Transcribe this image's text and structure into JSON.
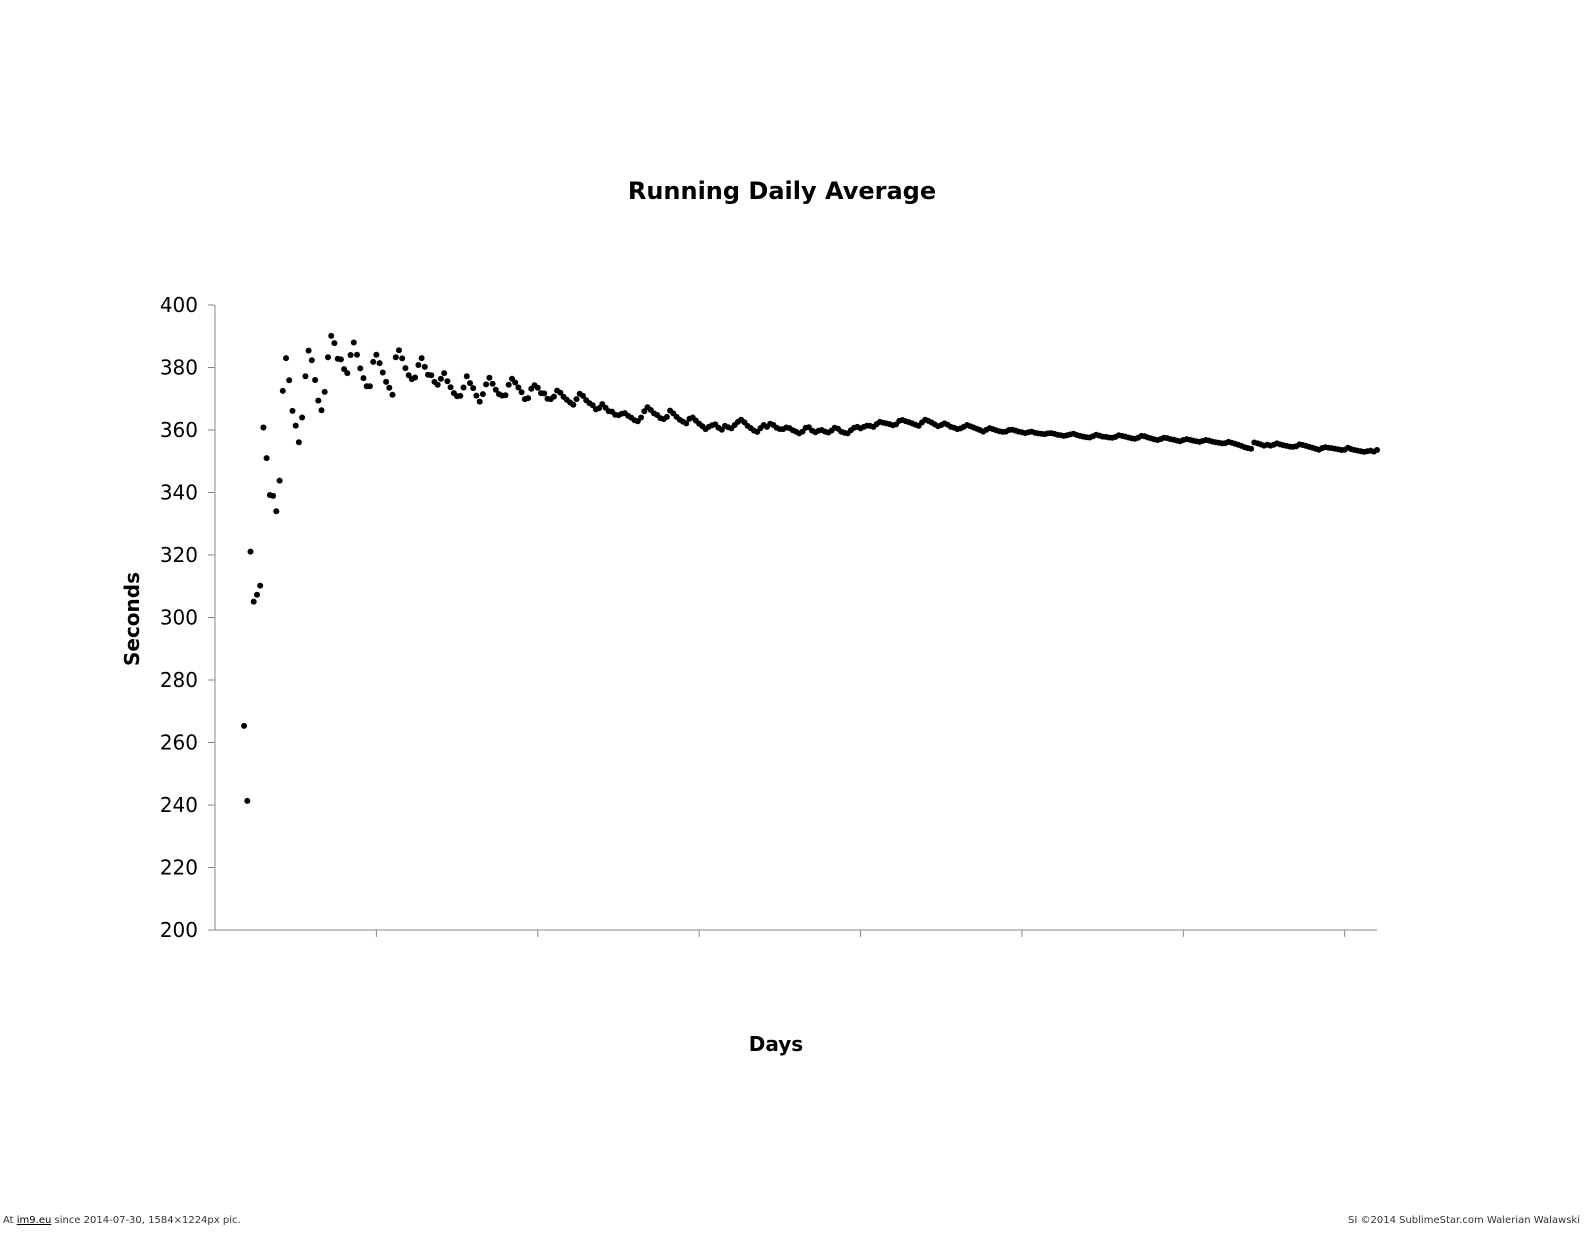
{
  "chart_data": {
    "type": "scatter",
    "title": "Running Daily Average",
    "xlabel": "Days",
    "ylabel": "Seconds",
    "ylim": [
      200,
      400
    ],
    "yticks": [
      200,
      220,
      240,
      260,
      280,
      300,
      320,
      340,
      360,
      380,
      400
    ],
    "xlim": [
      0,
      360
    ],
    "x_tick_labels": "none",
    "grid": false,
    "legend": "none",
    "marker_color": "#000000",
    "axis_color": "#888888",
    "series": [
      {
        "x": [
          9,
          10,
          11,
          12,
          13,
          14,
          15,
          16,
          17,
          18,
          19,
          20,
          21,
          22,
          23,
          24,
          25,
          26,
          27,
          28,
          29,
          30,
          31,
          32,
          33,
          34,
          35,
          36,
          37,
          38,
          39,
          40,
          41,
          42,
          43,
          44,
          45,
          46,
          47,
          48,
          49,
          50,
          51,
          52,
          53,
          54,
          55,
          56,
          57,
          58,
          59,
          60,
          61,
          62,
          63,
          64,
          65,
          66,
          67,
          68,
          69,
          70,
          71,
          72,
          73,
          74,
          75,
          76,
          77,
          78,
          79,
          80,
          81,
          82,
          83,
          84,
          85,
          86,
          87,
          88,
          89,
          90,
          91,
          92,
          93,
          94,
          95,
          96,
          97,
          98,
          99,
          100,
          101,
          102,
          103,
          104,
          105,
          106,
          107,
          108,
          109,
          110,
          111,
          112,
          113,
          114,
          115,
          116,
          117,
          118,
          119,
          120,
          121,
          122,
          123,
          124,
          125,
          126,
          127,
          128,
          129,
          130,
          131,
          132,
          133,
          134,
          135,
          136,
          137,
          138,
          139,
          140,
          141,
          142,
          143,
          144,
          145,
          146,
          147,
          148,
          149,
          150,
          151,
          152,
          153,
          154,
          155,
          156,
          157,
          158,
          159,
          160,
          161,
          162,
          163,
          164,
          165,
          166,
          167,
          168,
          169,
          170,
          171,
          172,
          173,
          174,
          175,
          176,
          177,
          178,
          179,
          180,
          181,
          182,
          183,
          184,
          185,
          186,
          187,
          188,
          189,
          190,
          191,
          192,
          193,
          194,
          195,
          196,
          197,
          198,
          199,
          200,
          201,
          202,
          203,
          204,
          205,
          206,
          207,
          208,
          209,
          210,
          211,
          212,
          213,
          214,
          215,
          216,
          217,
          218,
          219,
          220,
          221,
          222,
          223,
          224,
          225,
          226,
          227,
          228,
          229,
          230,
          231,
          232,
          233,
          234,
          235,
          236,
          237,
          238,
          239,
          240,
          241,
          242,
          243,
          244,
          245,
          246,
          247,
          248,
          249,
          250,
          251,
          252,
          253,
          254,
          255,
          256,
          257,
          258,
          259,
          260,
          261,
          262,
          263,
          264,
          265,
          266,
          267,
          268,
          269,
          270,
          271,
          272,
          273,
          274,
          275,
          276,
          277,
          278,
          279,
          280,
          281,
          282,
          283,
          284,
          285,
          286,
          287,
          288,
          289,
          290,
          291,
          292,
          293,
          294,
          295,
          296,
          297,
          298,
          299,
          300,
          301,
          302,
          303,
          304,
          305,
          306,
          307,
          308,
          309,
          310,
          311,
          312,
          313,
          314,
          315,
          316,
          317,
          318,
          319,
          320,
          321,
          322,
          323,
          324,
          325,
          326,
          327,
          328,
          329,
          330,
          331,
          332,
          333,
          334,
          335,
          336,
          337,
          338,
          339,
          340,
          341,
          342,
          343,
          344,
          345,
          346,
          347,
          348,
          349,
          350,
          351,
          352,
          353,
          354,
          355,
          356,
          357,
          358,
          359,
          360
        ],
        "y": [
          265.3,
          241.3,
          321.1,
          305.1,
          307.3,
          310.2,
          360.8,
          351.0,
          339.2,
          338.9,
          334.0,
          343.8,
          372.5,
          383.0,
          375.9,
          366.1,
          361.4,
          356.1,
          364.0,
          377.2,
          385.4,
          382.3,
          376.0,
          369.4,
          366.3,
          372.2,
          383.3,
          390.1,
          387.8,
          382.8,
          382.6,
          379.5,
          378.2,
          384.0,
          388.0,
          384.1,
          379.7,
          376.6,
          374.0,
          374.0,
          381.8,
          384.1,
          381.4,
          378.4,
          375.4,
          373.5,
          371.3,
          383.3,
          385.5,
          382.9,
          379.8,
          377.5,
          376.3,
          376.8,
          380.8,
          383.0,
          380.2,
          377.7,
          377.5,
          375.4,
          374.5,
          376.4,
          378.2,
          375.6,
          373.7,
          371.8,
          370.8,
          370.9,
          373.6,
          377.2,
          375.0,
          373.4,
          371.0,
          369.1,
          371.5,
          374.6,
          376.7,
          374.8,
          372.9,
          371.5,
          371.0,
          371.1,
          374.5,
          376.4,
          375.2,
          373.6,
          372.1,
          369.9,
          370.2,
          373.2,
          374.3,
          373.5,
          371.8,
          371.7,
          370.0,
          369.9,
          370.7,
          372.6,
          371.9,
          370.6,
          369.7,
          368.8,
          368.1,
          369.9,
          371.6,
          370.9,
          369.5,
          368.6,
          367.9,
          366.6,
          367.0,
          368.3,
          367.1,
          366.0,
          365.9,
          364.9,
          364.7,
          365.2,
          365.4,
          364.5,
          363.9,
          363.1,
          362.8,
          364.0,
          366.0,
          367.3,
          366.4,
          365.3,
          364.8,
          363.8,
          363.5,
          364.2,
          366.2,
          365.3,
          364.2,
          363.3,
          362.7,
          362.1,
          363.6,
          364.0,
          363.0,
          362.0,
          361.2,
          360.3,
          361.0,
          361.5,
          361.8,
          360.7,
          360.1,
          361.3,
          360.9,
          360.5,
          361.6,
          362.6,
          363.3,
          362.5,
          361.3,
          360.6,
          359.8,
          359.4,
          360.6,
          361.6,
          361.0,
          362.0,
          361.6,
          360.7,
          360.3,
          360.3,
          360.8,
          360.6,
          359.9,
          359.5,
          358.9,
          359.5,
          360.7,
          360.9,
          359.8,
          359.3,
          359.8,
          360.0,
          359.5,
          359.2,
          359.8,
          360.7,
          360.4,
          359.5,
          359.1,
          358.9,
          359.9,
          360.7,
          361.0,
          360.5,
          361.0,
          361.4,
          361.3,
          361.0,
          361.9,
          362.6,
          362.3,
          362.1,
          361.9,
          361.5,
          361.8,
          362.9,
          363.2,
          362.8,
          362.5,
          362.1,
          361.7,
          361.3,
          362.4,
          363.3,
          362.9,
          362.4,
          361.8,
          361.2,
          361.6,
          362.1,
          361.7,
          361.0,
          360.7,
          360.3,
          360.5,
          361.0,
          361.6,
          361.2,
          360.8,
          360.4,
          360.0,
          359.5,
          360.1,
          360.6,
          360.3,
          359.9,
          359.6,
          359.4,
          359.5,
          360.0,
          360.1,
          359.8,
          359.5,
          359.3,
          359.0,
          359.3,
          359.5,
          359.1,
          358.9,
          358.8,
          358.7,
          358.9,
          359.0,
          358.8,
          358.5,
          358.3,
          358.1,
          358.3,
          358.6,
          358.8,
          358.4,
          358.1,
          357.9,
          357.7,
          357.6,
          358.0,
          358.5,
          358.2,
          357.9,
          357.8,
          357.6,
          357.5,
          357.8,
          358.3,
          358.1,
          357.9,
          357.6,
          357.3,
          357.2,
          357.5,
          358.1,
          358.0,
          357.6,
          357.3,
          357.0,
          356.8,
          357.1,
          357.5,
          357.4,
          357.1,
          356.9,
          356.6,
          356.4,
          356.8,
          357.1,
          356.9,
          356.6,
          356.4,
          356.2,
          356.5,
          356.8,
          356.6,
          356.3,
          356.1,
          355.9,
          355.7,
          355.8,
          356.2,
          355.9,
          355.6,
          355.3,
          354.9,
          354.5,
          354.2,
          354.0,
          356.0,
          355.7,
          355.4,
          355.0,
          355.3,
          355.0,
          355.3,
          355.7,
          355.4,
          355.1,
          354.9,
          354.7,
          354.6,
          354.8,
          355.4,
          355.2,
          354.9,
          354.6,
          354.3,
          354.0,
          353.7,
          354.2,
          354.5,
          354.3,
          354.2,
          354.0,
          353.8,
          353.6,
          353.7,
          354.3,
          353.9,
          353.6,
          353.4,
          353.2,
          353.0,
          353.2,
          353.4,
          353.1,
          353.6
        ]
      }
    ]
  },
  "footer": {
    "left_prefix": "At ",
    "left_link": "im9.eu",
    "left_suffix": " since 2014-07-30, 1584×1224px pic.",
    "right": "SI ©2014 SublimeStar.com Walerian Walawski"
  }
}
